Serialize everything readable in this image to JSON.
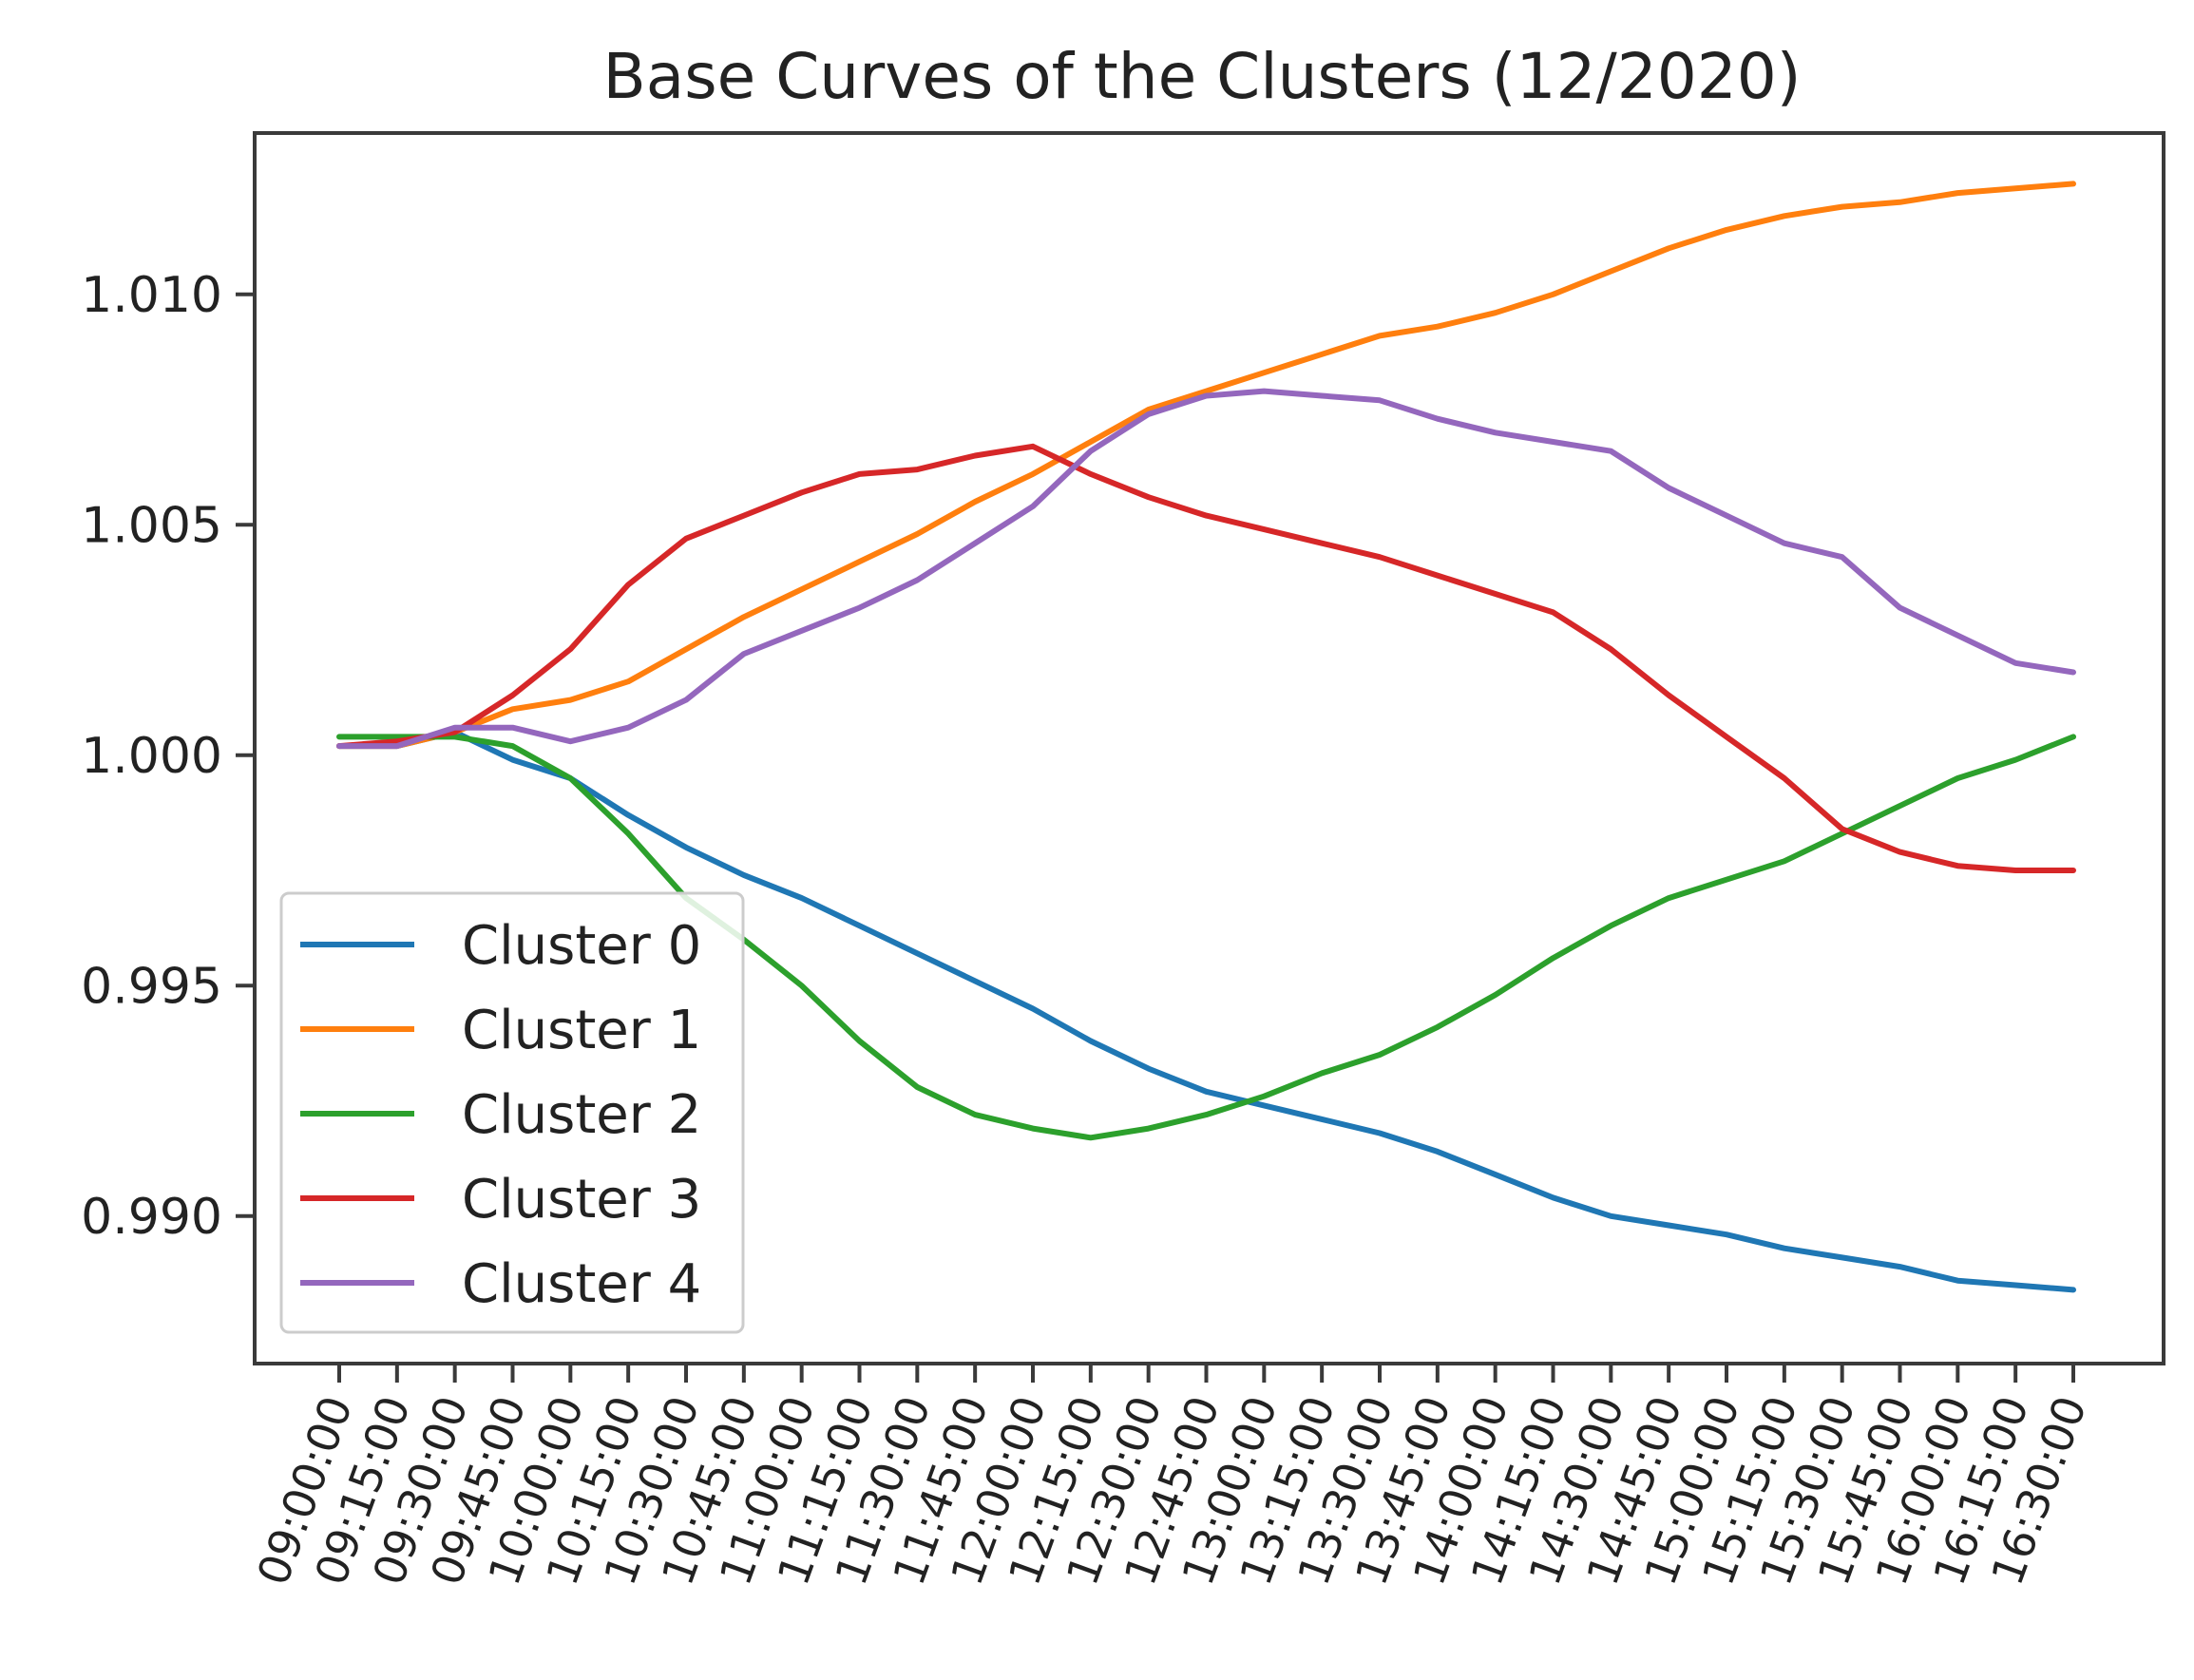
{
  "chart_data": {
    "type": "line",
    "title": "Base Curves of the Clusters (12/2020)",
    "xlabel": "",
    "ylabel": "",
    "x": [
      "09:00:00",
      "09:15:00",
      "09:30:00",
      "09:45:00",
      "10:00:00",
      "10:15:00",
      "10:30:00",
      "10:45:00",
      "11:00:00",
      "11:15:00",
      "11:30:00",
      "11:45:00",
      "12:00:00",
      "12:15:00",
      "12:30:00",
      "12:45:00",
      "13:00:00",
      "13:15:00",
      "13:30:00",
      "13:45:00",
      "14:00:00",
      "14:15:00",
      "14:30:00",
      "14:45:00",
      "15:00:00",
      "15:15:00",
      "15:30:00",
      "15:45:00",
      "16:00:00",
      "16:15:00",
      "16:30:00"
    ],
    "ylim": [
      0.9868,
      1.0135
    ],
    "yticks": [
      0.99,
      0.995,
      1.0,
      1.005,
      1.01
    ],
    "ytick_labels": [
      "0.990",
      "0.995",
      "1.000",
      "1.005",
      "1.010"
    ],
    "grid": false,
    "legend_position": "lower-left",
    "series": [
      {
        "name": "Cluster 0",
        "color": "#1f77b4",
        "values": [
          1.0002,
          1.0002,
          1.0005,
          0.9999,
          0.9995,
          0.9987,
          0.998,
          0.9974,
          0.9969,
          0.9963,
          0.9957,
          0.9951,
          0.9945,
          0.9938,
          0.9932,
          0.9927,
          0.9924,
          0.9921,
          0.9918,
          0.9914,
          0.9909,
          0.9904,
          0.99,
          0.9898,
          0.9896,
          0.9893,
          0.9891,
          0.9889,
          0.9886,
          0.9885,
          0.9884
        ]
      },
      {
        "name": "Cluster 1",
        "color": "#ff7f0e",
        "values": [
          1.0002,
          1.0002,
          1.0005,
          1.001,
          1.0012,
          1.0016,
          1.0023,
          1.003,
          1.0036,
          1.0042,
          1.0048,
          1.0055,
          1.0061,
          1.0068,
          1.0075,
          1.0079,
          1.0083,
          1.0087,
          1.0091,
          1.0093,
          1.0096,
          1.01,
          1.0105,
          1.011,
          1.0114,
          1.0117,
          1.0119,
          1.012,
          1.0122,
          1.0123,
          1.0124
        ]
      },
      {
        "name": "Cluster 2",
        "color": "#2ca02c",
        "values": [
          1.0004,
          1.0004,
          1.0004,
          1.0002,
          0.9995,
          0.9983,
          0.9969,
          0.996,
          0.995,
          0.9938,
          0.9928,
          0.9922,
          0.9919,
          0.9917,
          0.9919,
          0.9922,
          0.9926,
          0.9931,
          0.9935,
          0.9941,
          0.9948,
          0.9956,
          0.9963,
          0.9969,
          0.9973,
          0.9977,
          0.9983,
          0.9989,
          0.9995,
          0.9999,
          1.0004
        ]
      },
      {
        "name": "Cluster 3",
        "color": "#d62728",
        "values": [
          1.0002,
          1.0003,
          1.0005,
          1.0013,
          1.0023,
          1.0037,
          1.0047,
          1.0052,
          1.0057,
          1.0061,
          1.0062,
          1.0065,
          1.0067,
          1.0061,
          1.0056,
          1.0052,
          1.0049,
          1.0046,
          1.0043,
          1.0039,
          1.0035,
          1.0031,
          1.0023,
          1.0013,
          1.0004,
          0.9995,
          0.9984,
          0.9979,
          0.9976,
          0.9975,
          0.9975
        ]
      },
      {
        "name": "Cluster 4",
        "color": "#9467bd",
        "values": [
          1.0002,
          1.0002,
          1.0006,
          1.0006,
          1.0003,
          1.0006,
          1.0012,
          1.0022,
          1.0027,
          1.0032,
          1.0038,
          1.0046,
          1.0054,
          1.0066,
          1.0074,
          1.0078,
          1.0079,
          1.0078,
          1.0077,
          1.0073,
          1.007,
          1.0068,
          1.0066,
          1.0058,
          1.0052,
          1.0046,
          1.0043,
          1.0032,
          1.0026,
          1.002,
          1.0018
        ]
      }
    ]
  }
}
